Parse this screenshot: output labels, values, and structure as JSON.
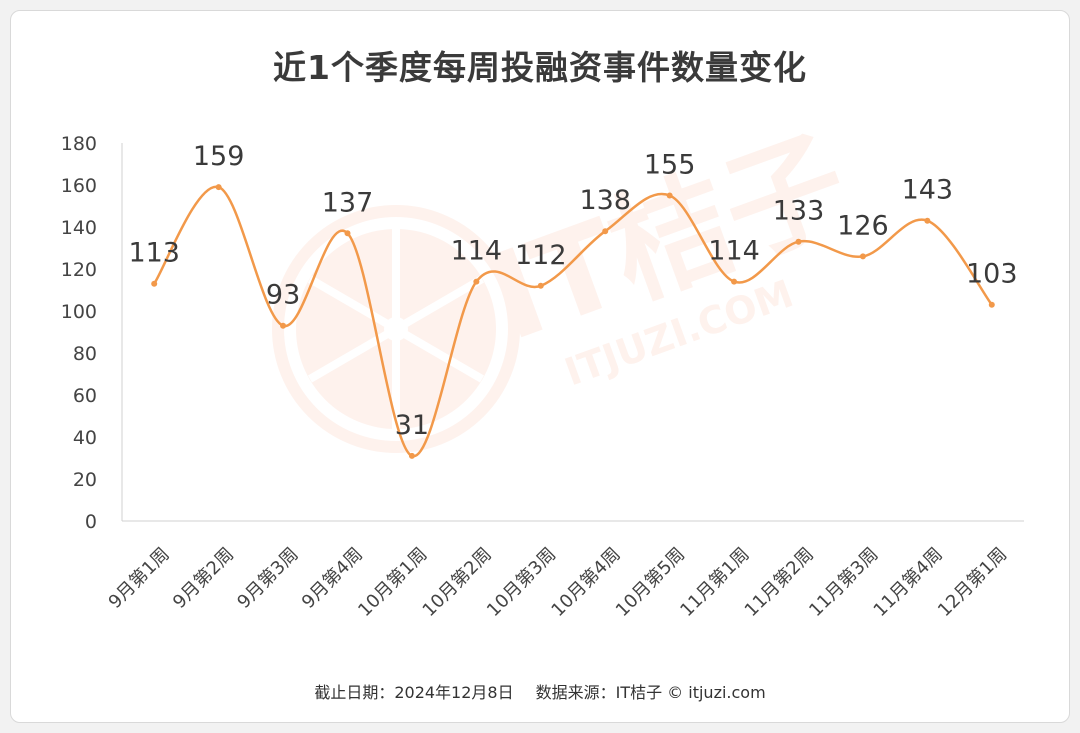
{
  "chart_data": {
    "type": "line",
    "title": "近1个季度每周投融资事件数量变化",
    "categories": [
      "9月第1周",
      "9月第2周",
      "9月第3周",
      "9月第4周",
      "10月第1周",
      "10月第2周",
      "10月第3周",
      "10月第4周",
      "10月第5周",
      "11月第1周",
      "11月第2周",
      "11月第3周",
      "11月第4周",
      "12月第1周"
    ],
    "series": [
      {
        "values": [
          113,
          159,
          93,
          137,
          31,
          114,
          112,
          138,
          155,
          114,
          133,
          126,
          143,
          103
        ]
      }
    ],
    "ylim": [
      0,
      180
    ],
    "yticks": [
      0,
      20,
      40,
      60,
      80,
      100,
      120,
      140,
      160,
      180
    ],
    "smooth": true,
    "data_labels": true,
    "grid": false,
    "line_color": "#f2994a"
  },
  "footer": {
    "date_text": "截止日期：2024年12月8日",
    "source_text": "数据来源：IT桔子 © itjuzi.com"
  },
  "watermark": {
    "text_cn": "IT桔子",
    "text_en": "ITJUZI.COM",
    "icon": "orange-slice-logo"
  }
}
